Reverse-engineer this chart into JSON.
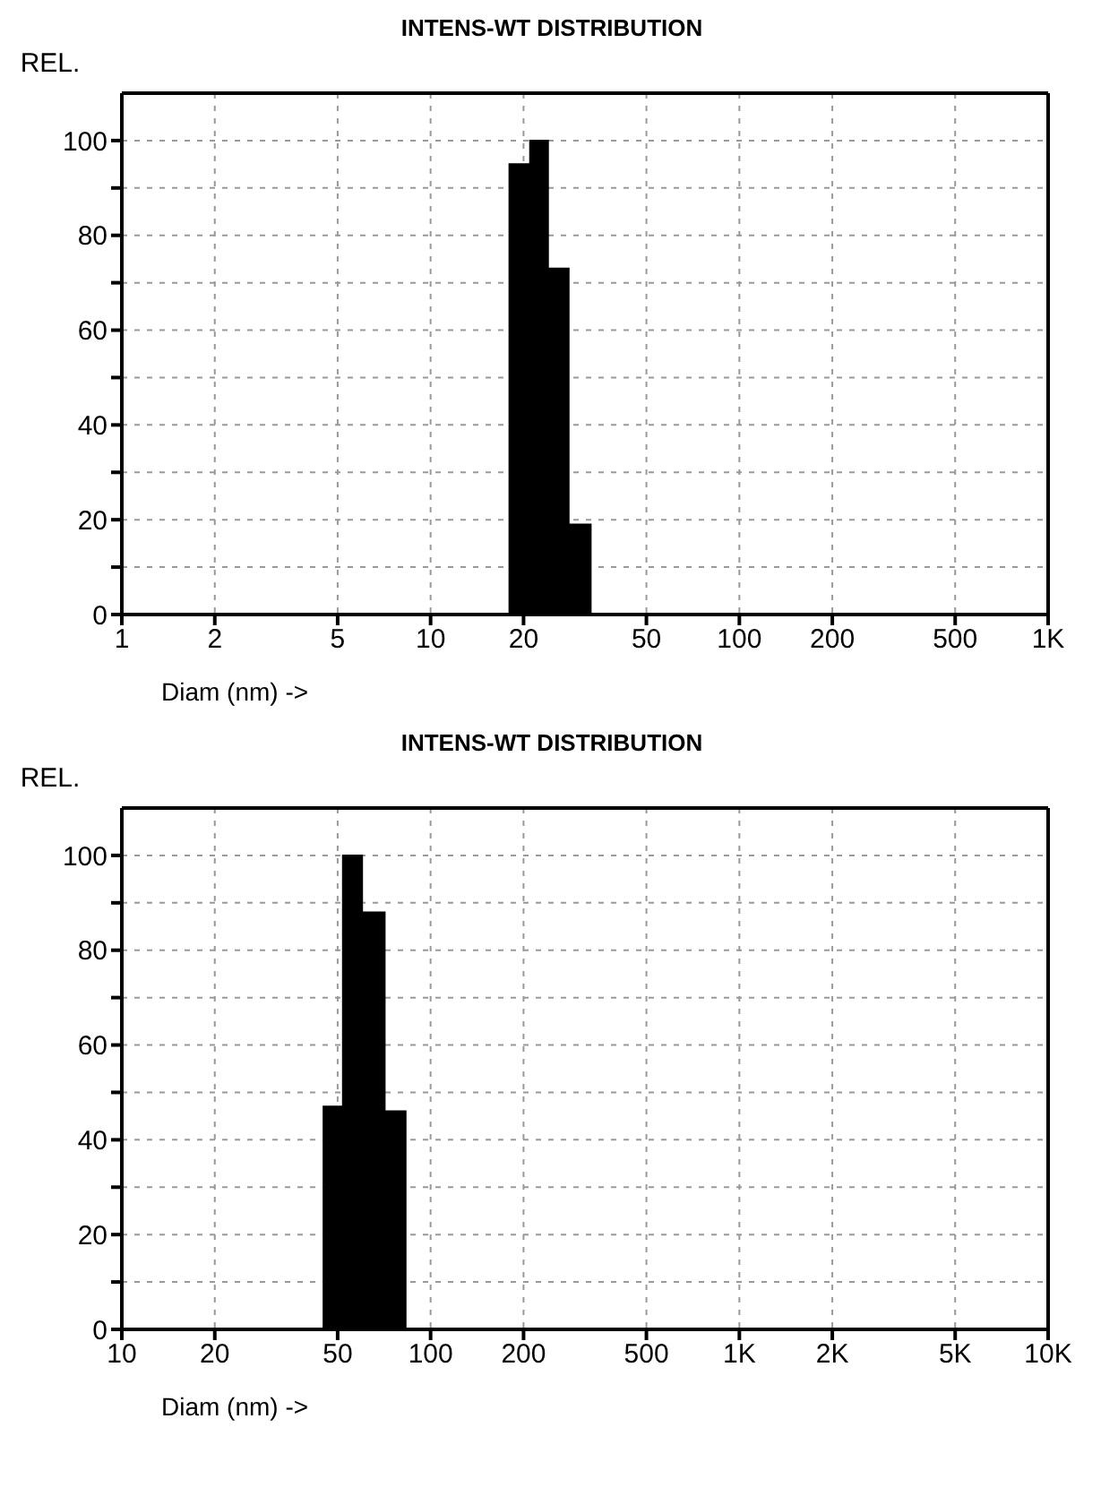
{
  "chart_data": [
    {
      "type": "histogram",
      "title": "INTENS-WT DISTRIBUTION",
      "xlabel": "Diam (nm) ->",
      "ylabel": "REL.",
      "log": "x",
      "grid": true,
      "color": "#000000",
      "bins": [
        18,
        21,
        24,
        28,
        33
      ],
      "values": [
        95,
        100,
        73,
        19
      ],
      "xlim": [
        1,
        1000
      ],
      "xticks": [
        1,
        2,
        5,
        10,
        20,
        50,
        100,
        200,
        500,
        {
          "value": 1000,
          "label": "1K"
        }
      ],
      "ylim": [
        0,
        110
      ],
      "yticks": [
        0,
        {
          "value": 10,
          "label": null
        },
        20,
        {
          "value": 30,
          "label": null
        },
        40,
        {
          "value": 50,
          "label": null
        },
        60,
        {
          "value": 70,
          "label": null
        },
        80,
        {
          "value": 90,
          "label": null
        },
        100
      ]
    },
    {
      "type": "histogram",
      "title": "INTENS-WT DISTRIBUTION",
      "xlabel": "Diam (nm) ->",
      "ylabel": "REL.",
      "log": "x",
      "grid": true,
      "color": "#000000",
      "bins": [
        45,
        52,
        60,
        71,
        83
      ],
      "values": [
        47,
        100,
        88,
        46
      ],
      "xlim": [
        10,
        10000
      ],
      "xticks": [
        10,
        20,
        50,
        100,
        200,
        500,
        {
          "value": 1000,
          "label": "1K"
        },
        {
          "value": 2000,
          "label": "2K"
        },
        {
          "value": 5000,
          "label": "5K"
        },
        {
          "value": 10000,
          "label": "10K"
        }
      ],
      "ylim": [
        0,
        110
      ],
      "yticks": [
        0,
        {
          "value": 10,
          "label": null
        },
        20,
        {
          "value": 30,
          "label": null
        },
        40,
        {
          "value": 50,
          "label": null
        },
        60,
        {
          "value": 70,
          "label": null
        },
        80,
        {
          "value": 90,
          "label": null
        },
        100
      ]
    }
  ]
}
